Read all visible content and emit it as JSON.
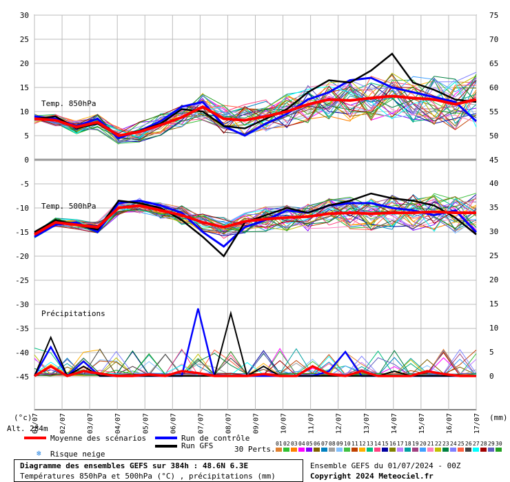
{
  "chart_data": {
    "type": "line",
    "title": "Diagramme des ensembles GEFS sur 384h : 48.6N 6.3E",
    "subtitle": "Températures 850hPa et 500hPa (°C) , précipitations (mm)",
    "x_ticks": [
      "01/07",
      "02/07",
      "03/07",
      "04/07",
      "05/07",
      "06/07",
      "07/07",
      "08/07",
      "09/07",
      "10/07",
      "11/07",
      "12/07",
      "13/07",
      "14/07",
      "15/07",
      "16/07",
      "17/07"
    ],
    "left_ticks": [
      "30",
      "25",
      "20",
      "15",
      "10",
      "5",
      "0",
      "-5",
      "-10",
      "-15",
      "-20",
      "-25",
      "-30",
      "-35",
      "-40",
      "-45"
    ],
    "right_ticks_top": [
      "75",
      "70",
      "65",
      "60",
      "55",
      "50",
      "45"
    ],
    "right_ticks_mid": [
      "40",
      "35",
      "30",
      "25",
      "20",
      "15",
      "10",
      "5",
      "0"
    ],
    "unit_left": "(°c)",
    "unit_right": "(mm)",
    "altitude": "Alt. 284m",
    "panel_labels": {
      "t850": "Temp. 850hPa",
      "t500": "Temp. 500hPa",
      "precip": "Précipitations"
    },
    "series": [
      {
        "name": "Moyenne des scénarios",
        "color": "#ff0000",
        "t850": [
          8.5,
          8.2,
          6.8,
          7.8,
          5.0,
          5.8,
          7.2,
          8.8,
          11.0,
          8.5,
          8.2,
          9.0,
          10.0,
          11.5,
          12.5,
          12.3,
          12.8,
          13.2,
          12.8,
          12.5,
          11.5,
          12.5
        ],
        "t500": [
          -15.5,
          -13.0,
          -13.5,
          -14.0,
          -10.0,
          -9.5,
          -10.5,
          -11.5,
          -13.0,
          -14.0,
          -12.8,
          -12.3,
          -12.0,
          -11.8,
          -11.2,
          -11.0,
          -11.2,
          -11.0,
          -11.0,
          -10.8,
          -11.0,
          -11.0
        ],
        "precip": [
          0,
          2,
          0,
          1,
          0.5,
          0,
          0,
          0.3,
          0,
          1,
          0.6,
          0,
          0,
          0,
          0.4,
          0,
          0,
          2,
          0.4,
          0,
          1,
          0,
          0,
          0,
          1,
          0.4,
          0,
          0
        ]
      },
      {
        "name": "Run de contrôle",
        "color": "#0000ff",
        "t850": [
          9.0,
          8.5,
          7.0,
          8.5,
          4.5,
          6.0,
          8.0,
          11.0,
          12.0,
          7.0,
          5.0,
          7.5,
          9.5,
          12.5,
          14.0,
          16.5,
          17.0,
          15.0,
          14.0,
          13.0,
          12.0,
          8.0
        ],
        "t500": [
          -16.0,
          -13.5,
          -13.0,
          -15.0,
          -9.0,
          -8.5,
          -9.5,
          -11.0,
          -15.0,
          -18.0,
          -14.0,
          -12.5,
          -10.5,
          -11.0,
          -9.5,
          -9.0,
          -9.0,
          -10.0,
          -10.5,
          -11.5,
          -10.5,
          -15.0
        ],
        "precip": [
          0,
          6,
          0,
          3,
          0,
          0,
          0,
          0,
          0,
          0,
          14,
          0,
          0,
          0,
          0,
          0,
          0,
          0,
          1,
          5,
          0,
          0,
          0,
          0,
          0,
          0,
          0,
          0
        ]
      },
      {
        "name": "Run GFS",
        "color": "#000000",
        "t850": [
          8.5,
          9.0,
          6.5,
          7.5,
          5.0,
          6.0,
          7.5,
          10.5,
          10.0,
          7.0,
          6.5,
          8.5,
          10.5,
          14.0,
          16.5,
          16.0,
          18.5,
          22.0,
          16.0,
          14.5,
          12.5,
          12.0
        ],
        "t500": [
          -15.0,
          -12.5,
          -13.5,
          -14.5,
          -8.5,
          -9.0,
          -10.0,
          -12.5,
          -16.0,
          -20.0,
          -13.0,
          -11.5,
          -10.0,
          -11.0,
          -9.5,
          -8.5,
          -7.0,
          -8.0,
          -8.5,
          -9.5,
          -12.0,
          -15.5
        ],
        "precip": [
          0,
          8,
          0,
          2,
          0,
          0,
          0,
          0,
          0,
          0,
          0,
          0,
          13,
          0,
          2,
          0,
          0,
          0,
          0,
          0,
          0,
          0,
          1,
          0,
          0,
          0,
          0,
          0
        ]
      }
    ],
    "ensemble_count": 30
  },
  "legend": {
    "mean": "Moyenne des scénarios",
    "control": "Run de contrôle",
    "gfs": "Run GFS",
    "snow": "Risque neige",
    "perts": "30 Perts."
  },
  "pert_numbers": [
    "01",
    "02",
    "03",
    "04",
    "05",
    "06",
    "07",
    "08",
    "09",
    "10",
    "11",
    "12",
    "13",
    "14",
    "15",
    "16",
    "17",
    "18",
    "19",
    "20",
    "21",
    "22",
    "23",
    "24",
    "25",
    "26",
    "27",
    "28",
    "29",
    "30"
  ],
  "pert_colors": [
    "#e08030",
    "#30c030",
    "#ff8000",
    "#ff00ff",
    "#8000ff",
    "#806000",
    "#0080c0",
    "#a0a0a0",
    "#80c0ff",
    "#40c040",
    "#c04000",
    "#ffb000",
    "#00c080",
    "#ff4080",
    "#0000a0",
    "#808000",
    "#c080ff",
    "#00a0a0",
    "#a04080",
    "#40a0ff",
    "#ff80c0",
    "#c0c000",
    "#008040",
    "#8080ff",
    "#ff6040",
    "#404040",
    "#00ffff",
    "#a00000",
    "#6060c0",
    "#20a020"
  ],
  "footer": {
    "title": "Diagramme des ensembles GEFS sur 384h : 48.6N 6.3E",
    "subtitle": "Températures 850hPa et 500hPa (°C) , précipitations (mm)",
    "run": "Ensemble GEFS du 01/07/2024 - 00Z",
    "copyright": "Copyright 2024 Meteociel.fr"
  }
}
